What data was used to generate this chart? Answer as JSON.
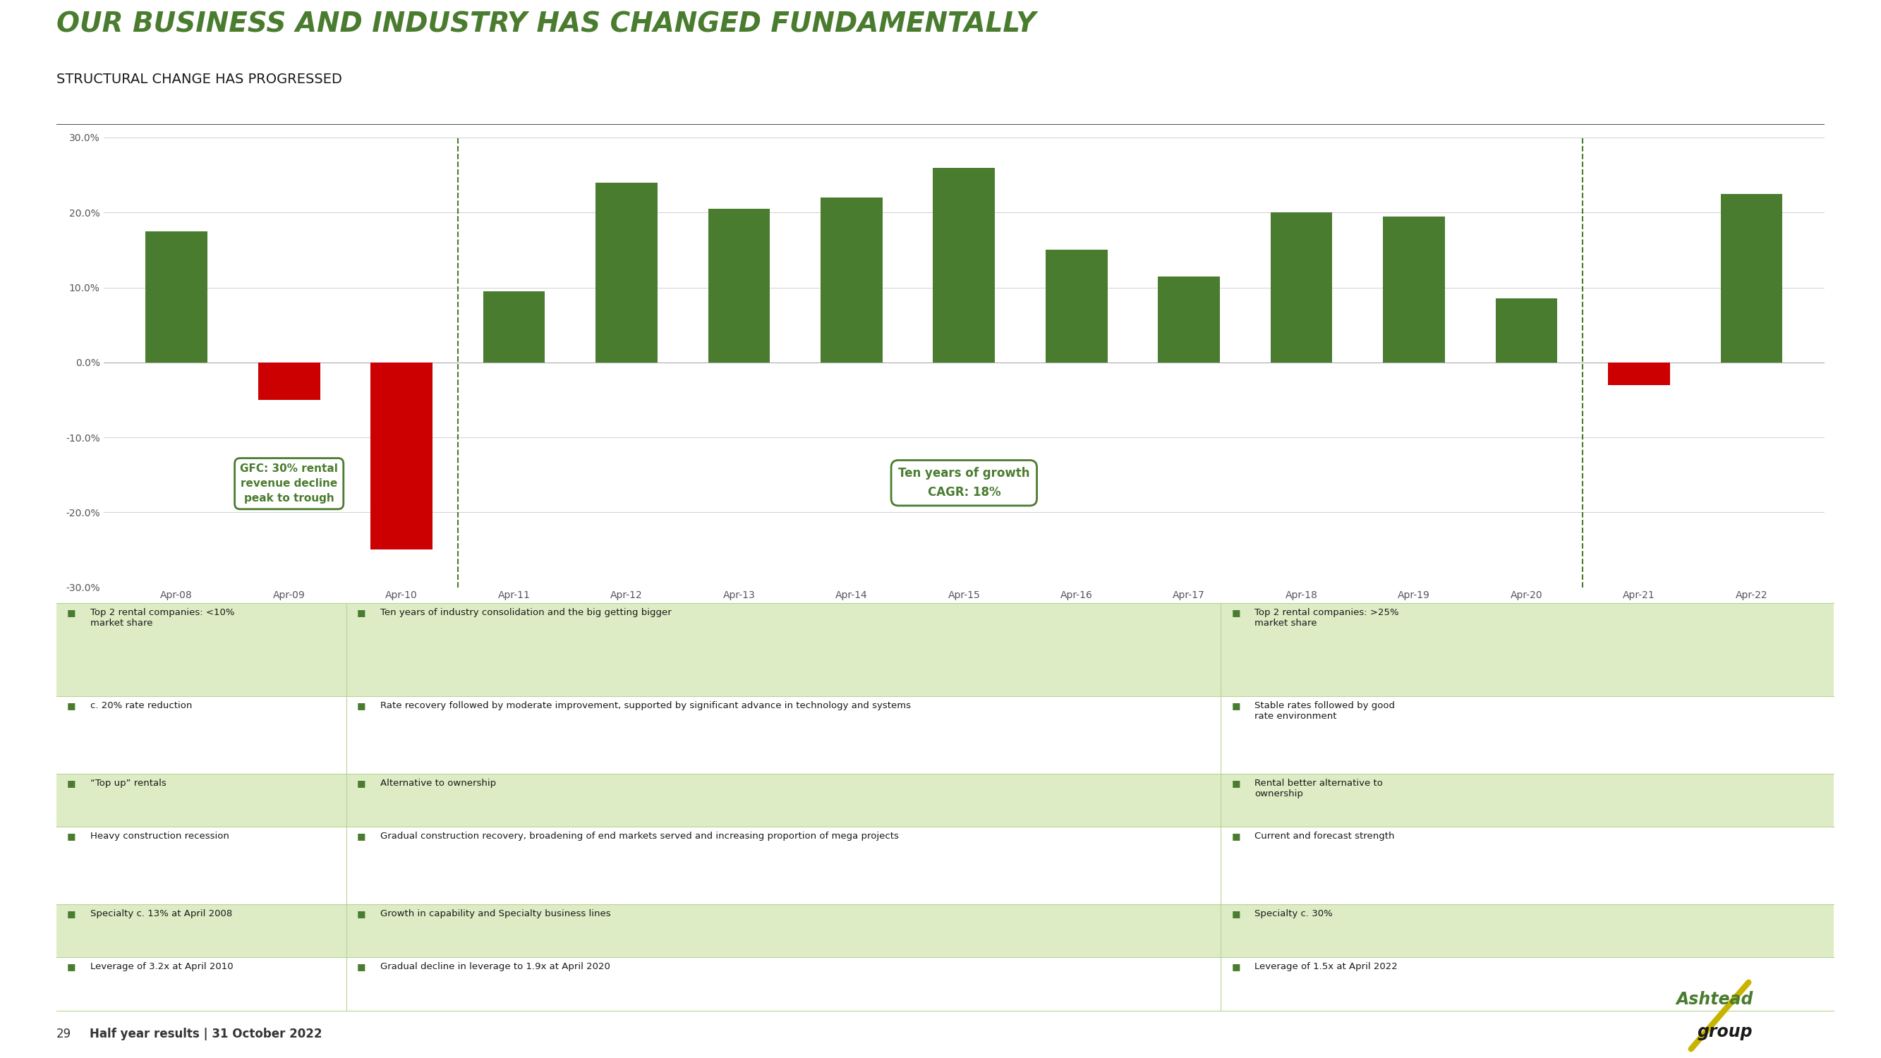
{
  "title": "OUR BUSINESS AND INDUSTRY HAS CHANGED FUNDAMENTALLY",
  "subtitle": "STRUCTURAL CHANGE HAS PROGRESSED",
  "title_color": "#4a7c2f",
  "subtitle_color": "#1a1a1a",
  "bg_color": "#ffffff",
  "bar_labels": [
    "Apr-08",
    "Apr-09",
    "Apr-10",
    "Apr-11",
    "Apr-12",
    "Apr-13",
    "Apr-14",
    "Apr-15",
    "Apr-16",
    "Apr-17",
    "Apr-18",
    "Apr-19",
    "Apr-20",
    "Apr-21",
    "Apr-22"
  ],
  "bar_values": [
    17.5,
    -5.0,
    -25.0,
    9.5,
    24.0,
    20.5,
    22.0,
    26.0,
    15.0,
    11.5,
    20.0,
    19.5,
    8.5,
    -3.0,
    22.5
  ],
  "bar_colors": [
    "#4a7c2f",
    "#cc0000",
    "#cc0000",
    "#4a7c2f",
    "#4a7c2f",
    "#4a7c2f",
    "#4a7c2f",
    "#4a7c2f",
    "#4a7c2f",
    "#4a7c2f",
    "#4a7c2f",
    "#4a7c2f",
    "#4a7c2f",
    "#cc0000",
    "#4a7c2f"
  ],
  "ylim": [
    -30.0,
    30.0
  ],
  "yticks": [
    -30.0,
    -20.0,
    -10.0,
    0.0,
    10.0,
    20.0,
    30.0
  ],
  "ytick_labels": [
    "-30.0%",
    "-20.0%",
    "-10.0%",
    "0.0%",
    "10.0%",
    "20.0%",
    "30.0%"
  ],
  "gfc_box_text": "GFC: 30% rental\nrevenue decline\npeak to trough",
  "ten_years_text": "Ten years of growth\nCAGR: 18%",
  "gridline_color": "#d0d0d0",
  "tick_color": "#555555",
  "divider_color": "#4a7c2f",
  "table_shaded_bg": "#ddecc4",
  "table_plain_bg": "#ffffff",
  "table_border_color": "#b8d498",
  "col1_rows": [
    "Top 2 rental companies: <10%\nmarket share",
    "c. 20% rate reduction",
    "“Top up” rentals",
    "Heavy construction recession",
    "Specialty c. 13% at April 2008",
    "Leverage of 3.2x at April 2010"
  ],
  "col2_rows": [
    "Ten years of industry consolidation and the big getting bigger",
    "Rate recovery followed by moderate improvement, supported by significant advance in technology and systems",
    "Alternative to ownership",
    "Gradual construction recovery, broadening of end markets served and increasing proportion of mega projects",
    "Growth in capability and Specialty business lines",
    "Gradual decline in leverage to 1.9x at April 2020"
  ],
  "col3_rows": [
    "Top 2 rental companies: >25%\nmarket share",
    "Stable rates followed by good\nrate environment",
    "Rental better alternative to\nownership",
    "Current and forecast strength",
    "Specialty c. 30%",
    "Leverage of 1.5x at April 2022"
  ],
  "col1_shaded": [
    true,
    false,
    true,
    false,
    true,
    false
  ],
  "col2_shaded": [
    false,
    false,
    false,
    false,
    false,
    false
  ],
  "col3_shaded": [
    false,
    false,
    false,
    false,
    false,
    false
  ],
  "row_shaded": [
    true,
    false,
    true,
    false,
    true,
    false
  ]
}
